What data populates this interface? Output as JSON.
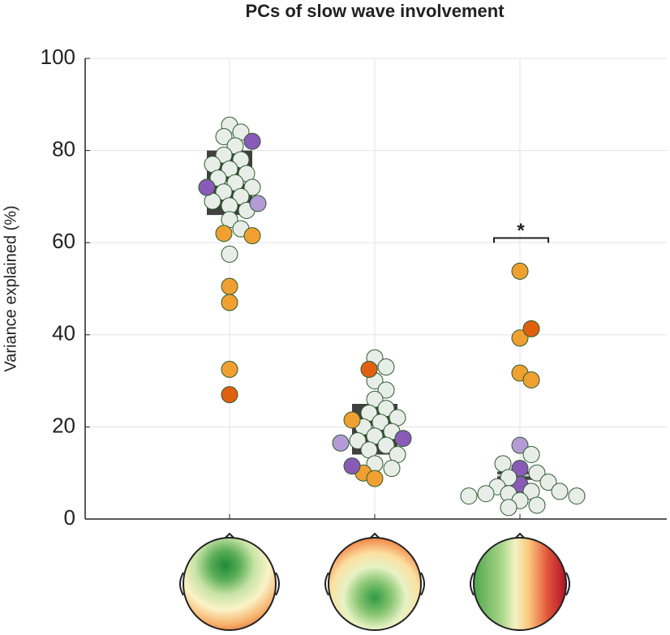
{
  "chart_data": {
    "type": "swarm-box",
    "title": "PCs of slow wave involvement",
    "ylabel": "Variance explained (%)",
    "categories": [
      null,
      null,
      null
    ],
    "ylim": [
      0,
      100
    ],
    "yticks": [
      0,
      20,
      40,
      60,
      80,
      100
    ],
    "grid": true,
    "box_color": "#404040",
    "median_color": "#c8c8c8",
    "boxes": [
      {
        "q1": 66,
        "median": 73,
        "q3": 80
      },
      {
        "q1": 14,
        "median": 20,
        "q3": 25
      },
      {
        "q1": 8.5,
        "median": 9.5,
        "q3": 10.3
      }
    ],
    "points": [
      {
        "values": [
          85.5,
          84,
          83,
          81,
          79,
          78,
          77,
          76,
          75,
          74,
          73,
          72,
          71,
          70,
          69,
          68,
          67,
          65,
          63,
          57.5,
          82,
          72,
          68.5,
          62,
          61.5,
          50.5,
          47,
          32.5,
          27
        ],
        "colors": [
          "#e8ede8",
          "#e8ede8",
          "#e8ede8",
          "#e8ede8",
          "#e8ede8",
          "#e8ede8",
          "#e8ede8",
          "#e8ede8",
          "#e8ede8",
          "#e8ede8",
          "#e8ede8",
          "#e8ede8",
          "#e8ede8",
          "#e8ede8",
          "#e8ede8",
          "#e8ede8",
          "#e8ede8",
          "#e8ede8",
          "#e8ede8",
          "#e8ede8",
          "#8a5ab8",
          "#8a5ab8",
          "#b49ad6",
          "#f0a030",
          "#f0a030",
          "#f0a030",
          "#f0a030",
          "#f0a030",
          "#e06010"
        ]
      },
      {
        "values": [
          35,
          33,
          30,
          28,
          26,
          24,
          23,
          22,
          21,
          20,
          19,
          18,
          17,
          16,
          15,
          14,
          12,
          11,
          32.5,
          21.5,
          10,
          8.8,
          17.5,
          11.5,
          16.5
        ],
        "colors": [
          "#e8ede8",
          "#e8ede8",
          "#e8ede8",
          "#e8ede8",
          "#e8ede8",
          "#e8ede8",
          "#e8ede8",
          "#e8ede8",
          "#e8ede8",
          "#e8ede8",
          "#e8ede8",
          "#e8ede8",
          "#e8ede8",
          "#e8ede8",
          "#e8ede8",
          "#e8ede8",
          "#e8ede8",
          "#e8ede8",
          "#e06010",
          "#f0a030",
          "#f0a030",
          "#f0a030",
          "#8a5ab8",
          "#8a5ab8",
          "#b49ad6"
        ]
      },
      {
        "values": [
          53.8,
          39.3,
          31.7,
          30.2,
          41.3,
          16,
          11,
          7.5,
          14,
          12,
          10,
          9,
          8,
          7,
          6,
          6,
          5.5,
          5.5,
          5,
          5,
          4,
          3,
          2.5
        ],
        "colors": [
          "#f0a030",
          "#f0a030",
          "#f0a030",
          "#f0a030",
          "#e06010",
          "#b49ad6",
          "#8a5ab8",
          "#8a5ab8",
          "#e8ede8",
          "#e8ede8",
          "#e8ede8",
          "#e8ede8",
          "#e8ede8",
          "#e8ede8",
          "#e8ede8",
          "#e8ede8",
          "#e8ede8",
          "#e8ede8",
          "#e8ede8",
          "#e8ede8",
          "#e8ede8",
          "#e8ede8",
          "#e8ede8"
        ]
      }
    ],
    "annotation": {
      "text": "*",
      "category": 2,
      "y": 61
    }
  }
}
